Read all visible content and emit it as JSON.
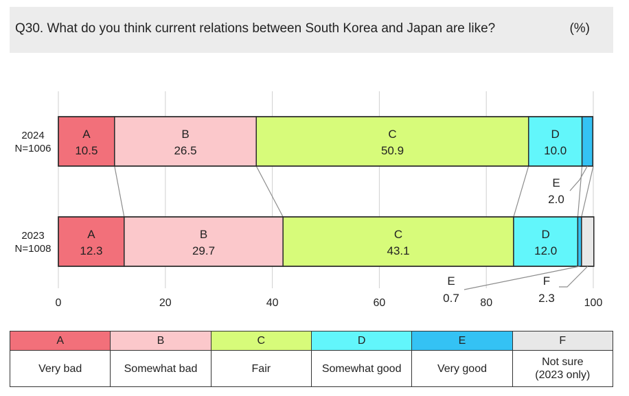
{
  "header": {
    "question": "Q30. What do you think current relations between South Korea and Japan are like?",
    "unit": "(%)"
  },
  "chart_data": {
    "type": "bar",
    "orientation": "horizontal",
    "stacked": true,
    "xlim": [
      0,
      100
    ],
    "xticks": [
      0,
      20,
      40,
      60,
      80,
      100
    ],
    "grid": true,
    "rows": [
      {
        "year": "2024",
        "n": "N=1006",
        "segments": [
          {
            "key": "A",
            "value": 10.5,
            "label": "10.5"
          },
          {
            "key": "B",
            "value": 26.5,
            "label": "26.5"
          },
          {
            "key": "C",
            "value": 50.9,
            "label": "50.9"
          },
          {
            "key": "D",
            "value": 10.0,
            "label": "10.0"
          },
          {
            "key": "E",
            "value": 2.0,
            "label": "2.0"
          }
        ]
      },
      {
        "year": "2023",
        "n": "N=1008",
        "segments": [
          {
            "key": "A",
            "value": 12.3,
            "label": "12.3"
          },
          {
            "key": "B",
            "value": 29.7,
            "label": "29.7"
          },
          {
            "key": "C",
            "value": 43.1,
            "label": "43.1"
          },
          {
            "key": "D",
            "value": 12.0,
            "label": "12.0"
          },
          {
            "key": "E",
            "value": 0.7,
            "label": "0.7"
          },
          {
            "key": "F",
            "value": 2.3,
            "label": "2.3"
          }
        ]
      }
    ],
    "colors": {
      "A": "#f2707a",
      "B": "#fbc8cb",
      "C": "#d7fb7a",
      "D": "#62f6fb",
      "E": "#34c2f4",
      "F": "#e8e8e8"
    }
  },
  "legend": [
    {
      "key": "A",
      "desc": "Very bad"
    },
    {
      "key": "B",
      "desc": "Somewhat bad"
    },
    {
      "key": "C",
      "desc": "Fair"
    },
    {
      "key": "D",
      "desc": "Somewhat good"
    },
    {
      "key": "E",
      "desc": "Very good"
    },
    {
      "key": "F",
      "desc": "Not sure\n(2023 only)"
    }
  ]
}
